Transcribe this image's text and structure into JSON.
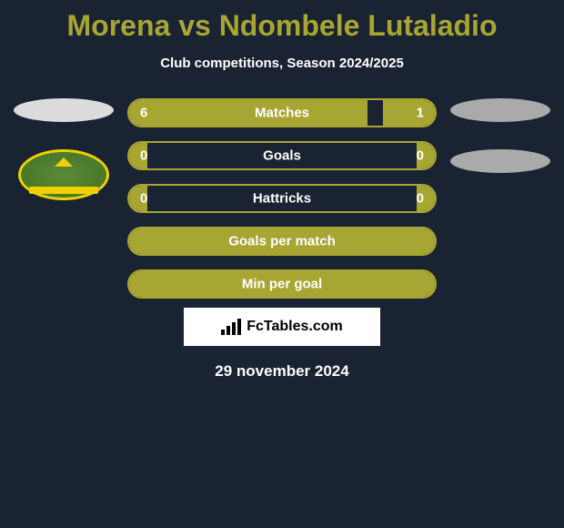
{
  "title": "Morena vs Ndombele Lutaladio",
  "subtitle": "Club competitions, Season 2024/2025",
  "date": "29 november 2024",
  "watermark": "FcTables.com",
  "colors": {
    "accent": "#a8a632",
    "title": "#a8a632",
    "background": "#1a2332",
    "badge_border": "#f0d000",
    "badge_fill": "#5a8a3a",
    "left_ellipse": "#dcdcdc",
    "right_ellipse": "#aaaaaa"
  },
  "stats": [
    {
      "label": "Matches",
      "left_value": "6",
      "right_value": "1",
      "left_width_pct": 78,
      "right_width_pct": 17
    },
    {
      "label": "Goals",
      "left_value": "0",
      "right_value": "0",
      "left_width_pct": 6,
      "right_width_pct": 6
    },
    {
      "label": "Hattricks",
      "left_value": "0",
      "right_value": "0",
      "left_width_pct": 6,
      "right_width_pct": 6
    },
    {
      "label": "Goals per match",
      "left_value": "",
      "right_value": "",
      "left_width_pct": 100,
      "right_width_pct": 0
    },
    {
      "label": "Min per goal",
      "left_value": "",
      "right_value": "",
      "left_width_pct": 100,
      "right_width_pct": 0
    }
  ]
}
